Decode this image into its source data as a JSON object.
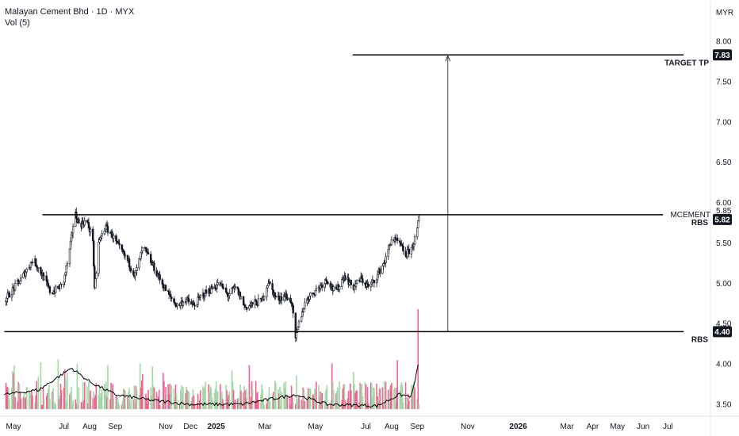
{
  "legend": {
    "title": "Malayan Cement Bhd · 1D · MYX",
    "volume_label": "Vol (5)"
  },
  "currency": "MYR",
  "colors": {
    "up": "#26a69a",
    "down": "#131722",
    "vol_up": "#a5d6a7",
    "vol_down": "#f06292",
    "line": "#000000",
    "tag_bg": "#131722"
  },
  "chart_data": {
    "type": "candlestick",
    "symbol": "MCEMENT",
    "y_ticks": [
      "8.00",
      "7.50",
      "7.00",
      "6.50",
      "6.00",
      "5.50",
      "5.00",
      "4.50",
      "4.00",
      "3.50"
    ],
    "y_tick_values": [
      8.0,
      7.5,
      7.0,
      6.5,
      6.0,
      5.5,
      5.0,
      4.5,
      4.0,
      3.5
    ],
    "ylim": [
      3.4,
      8.35
    ],
    "x_ticks": [
      "May",
      "Jul",
      "Aug",
      "Sep",
      "Nov",
      "Dec",
      "2025",
      "Mar",
      "May",
      "Jul",
      "Aug",
      "Sep",
      "Nov",
      "2026",
      "Mar",
      "Apr",
      "May",
      "Jun",
      "Jul"
    ],
    "x_tick_dates": [
      "2024-05-01",
      "2024-07-01",
      "2024-08-01",
      "2024-09-01",
      "2024-11-01",
      "2024-12-01",
      "2025-01-01",
      "2025-03-01",
      "2025-05-01",
      "2025-07-01",
      "2025-08-01",
      "2025-09-01",
      "2025-11-01",
      "2026-01-01",
      "2026-03-01",
      "2026-04-01",
      "2026-05-01",
      "2026-06-01",
      "2026-07-01"
    ],
    "price_path": [
      [
        "2024-04-20",
        4.78
      ],
      [
        "2024-05-10",
        5.05
      ],
      [
        "2024-05-25",
        5.3
      ],
      [
        "2024-06-05",
        5.1
      ],
      [
        "2024-06-15",
        4.88
      ],
      [
        "2024-06-30",
        4.98
      ],
      [
        "2024-07-08",
        5.4
      ],
      [
        "2024-07-14",
        5.88
      ],
      [
        "2024-07-20",
        5.72
      ],
      [
        "2024-07-28",
        5.78
      ],
      [
        "2024-08-05",
        5.55
      ],
      [
        "2024-08-07",
        4.9
      ],
      [
        "2024-08-12",
        5.5
      ],
      [
        "2024-08-20",
        5.7
      ],
      [
        "2024-08-28",
        5.6
      ],
      [
        "2024-09-05",
        5.45
      ],
      [
        "2024-09-15",
        5.3
      ],
      [
        "2024-09-25",
        5.1
      ],
      [
        "2024-10-05",
        5.45
      ],
      [
        "2024-10-15",
        5.25
      ],
      [
        "2024-10-25",
        5.05
      ],
      [
        "2024-11-05",
        4.85
      ],
      [
        "2024-11-15",
        4.72
      ],
      [
        "2024-11-25",
        4.8
      ],
      [
        "2024-12-05",
        4.72
      ],
      [
        "2024-12-15",
        4.85
      ],
      [
        "2024-12-25",
        4.92
      ],
      [
        "2025-01-05",
        5.0
      ],
      [
        "2025-01-15",
        4.85
      ],
      [
        "2025-01-25",
        4.95
      ],
      [
        "2025-02-05",
        4.7
      ],
      [
        "2025-02-15",
        4.75
      ],
      [
        "2025-02-25",
        4.78
      ],
      [
        "2025-03-05",
        5.02
      ],
      [
        "2025-03-15",
        4.8
      ],
      [
        "2025-03-25",
        4.85
      ],
      [
        "2025-04-02",
        4.78
      ],
      [
        "2025-04-07",
        4.3
      ],
      [
        "2025-04-12",
        4.55
      ],
      [
        "2025-04-20",
        4.8
      ],
      [
        "2025-05-05",
        4.95
      ],
      [
        "2025-05-15",
        5.05
      ],
      [
        "2025-05-25",
        4.88
      ],
      [
        "2025-06-05",
        5.1
      ],
      [
        "2025-06-15",
        4.95
      ],
      [
        "2025-06-25",
        5.05
      ],
      [
        "2025-07-05",
        4.95
      ],
      [
        "2025-07-15",
        5.1
      ],
      [
        "2025-07-25",
        5.3
      ],
      [
        "2025-08-01",
        5.55
      ],
      [
        "2025-08-10",
        5.5
      ],
      [
        "2025-08-18",
        5.35
      ],
      [
        "2025-08-26",
        5.45
      ],
      [
        "2025-09-01",
        5.65
      ],
      [
        "2025-09-03",
        5.82
      ]
    ],
    "volume_avg_path": [
      [
        "2024-04-20",
        3.62
      ],
      [
        "2024-06-01",
        3.68
      ],
      [
        "2024-07-10",
        3.95
      ],
      [
        "2024-08-01",
        3.78
      ],
      [
        "2024-09-01",
        3.62
      ],
      [
        "2024-10-15",
        3.55
      ],
      [
        "2024-12-01",
        3.5
      ],
      [
        "2025-02-01",
        3.5
      ],
      [
        "2025-04-07",
        3.62
      ],
      [
        "2025-05-15",
        3.5
      ],
      [
        "2025-07-15",
        3.48
      ],
      [
        "2025-08-10",
        3.62
      ],
      [
        "2025-08-25",
        3.6
      ],
      [
        "2025-09-03",
        4.02
      ]
    ],
    "volume_start": "2024-04-20",
    "volume_end": "2025-09-03",
    "volume_base": 3.44,
    "volume_spike_date": "2025-09-02",
    "volume_spike_top": 4.68,
    "horizontal_lines": [
      {
        "name": "rbs-resistance",
        "y": 5.85,
        "x_from": "2024-06-05",
        "x_to": "2026-06-25"
      },
      {
        "name": "rbs-support",
        "y": 4.4,
        "x_from": "2024-04-20",
        "x_to": "2026-07-20"
      },
      {
        "name": "target-line",
        "y": 7.83,
        "x_from": "2025-06-15",
        "x_to": "2026-07-20"
      }
    ],
    "arrow": {
      "x": "2025-10-08",
      "y_from": 4.4,
      "y_to": 7.83
    },
    "annotations": {
      "target": "TARGET TP",
      "mcement": "MCEMENT",
      "rbs_upper": "RBS",
      "rbs_lower": "RBS"
    },
    "price_tags": [
      {
        "label": "7.83",
        "value": 7.83
      },
      {
        "label": "5.85",
        "value": 5.85,
        "plain": true
      },
      {
        "label": "5.82",
        "value": 5.82
      },
      {
        "label": "4.40",
        "value": 4.4
      }
    ]
  }
}
